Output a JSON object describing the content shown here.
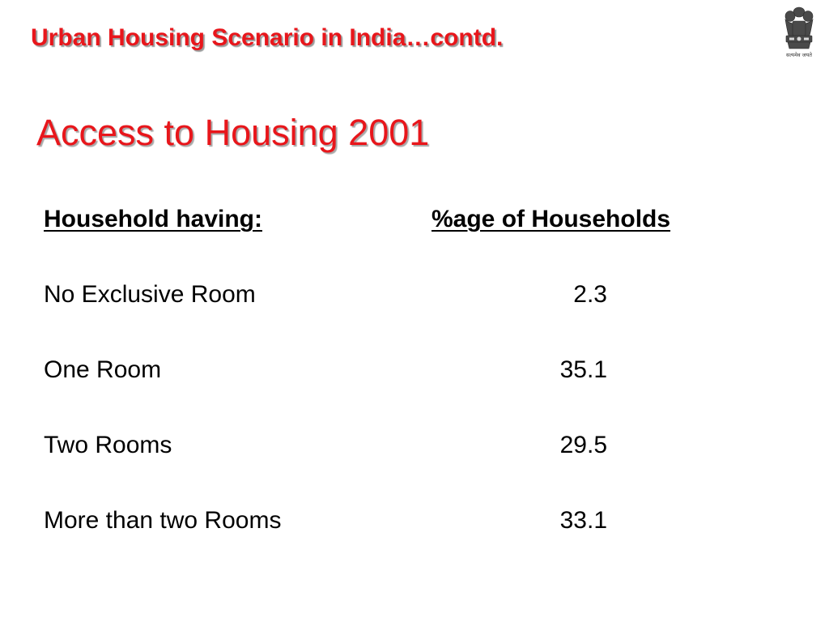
{
  "header": {
    "title": "Urban Housing Scenario in India…contd."
  },
  "emblem": {
    "icon": "national-emblem-icon",
    "caption": "सत्यमेव जयते"
  },
  "slide": {
    "title": "Access to Housing 2001"
  },
  "table": {
    "columns": [
      "Household having:",
      "%age of Households"
    ],
    "rows": [
      {
        "label": "No Exclusive Room",
        "value": "2.3"
      },
      {
        "label": "One Room",
        "value": "35.1"
      },
      {
        "label": "Two Rooms",
        "value": "29.5"
      },
      {
        "label": "More than two Rooms",
        "value": "33.1"
      }
    ]
  },
  "colors": {
    "title_red": "#e8161b",
    "text": "#000000",
    "background": "#ffffff"
  }
}
